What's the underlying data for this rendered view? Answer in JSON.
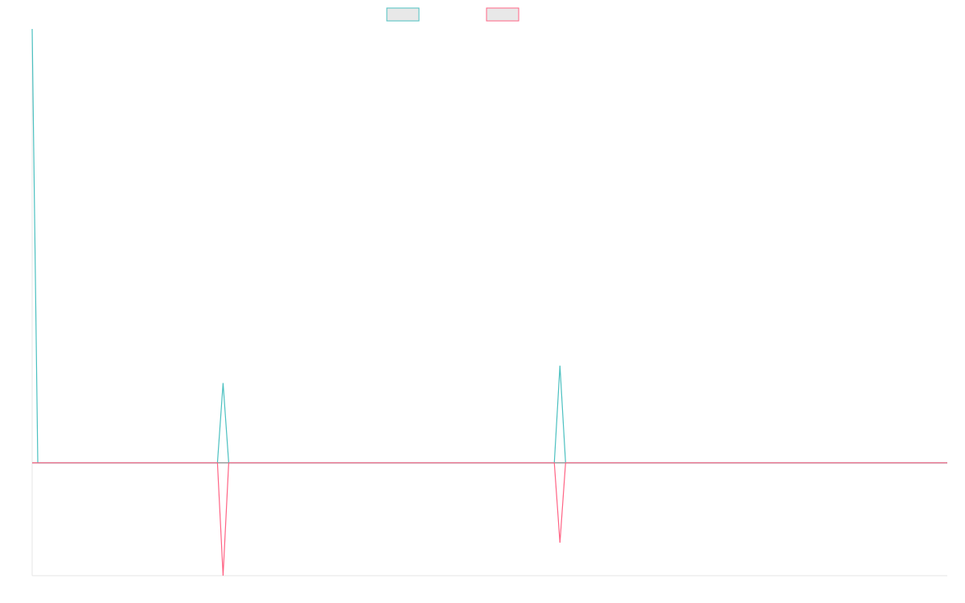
{
  "chart_data": {
    "type": "line",
    "title": "",
    "xlabel": "",
    "ylabel": "",
    "x": [
      0,
      1,
      33,
      34,
      35,
      93,
      94,
      95,
      163
    ],
    "ylim": [
      -1.3,
      5
    ],
    "xlim": [
      0,
      163
    ],
    "grid": false,
    "legend_position": "top-center",
    "series": [
      {
        "name": "",
        "color": "#4bc0c0",
        "fill": "#e8e8e8",
        "values": [
          5,
          0,
          0,
          0.92,
          0,
          0,
          1.12,
          0,
          0
        ]
      },
      {
        "name": "",
        "color": "#ff6384",
        "fill": "#e8e8e8",
        "values": [
          0,
          0,
          0,
          -1.3,
          0,
          0,
          -0.92,
          0,
          0
        ]
      }
    ]
  }
}
